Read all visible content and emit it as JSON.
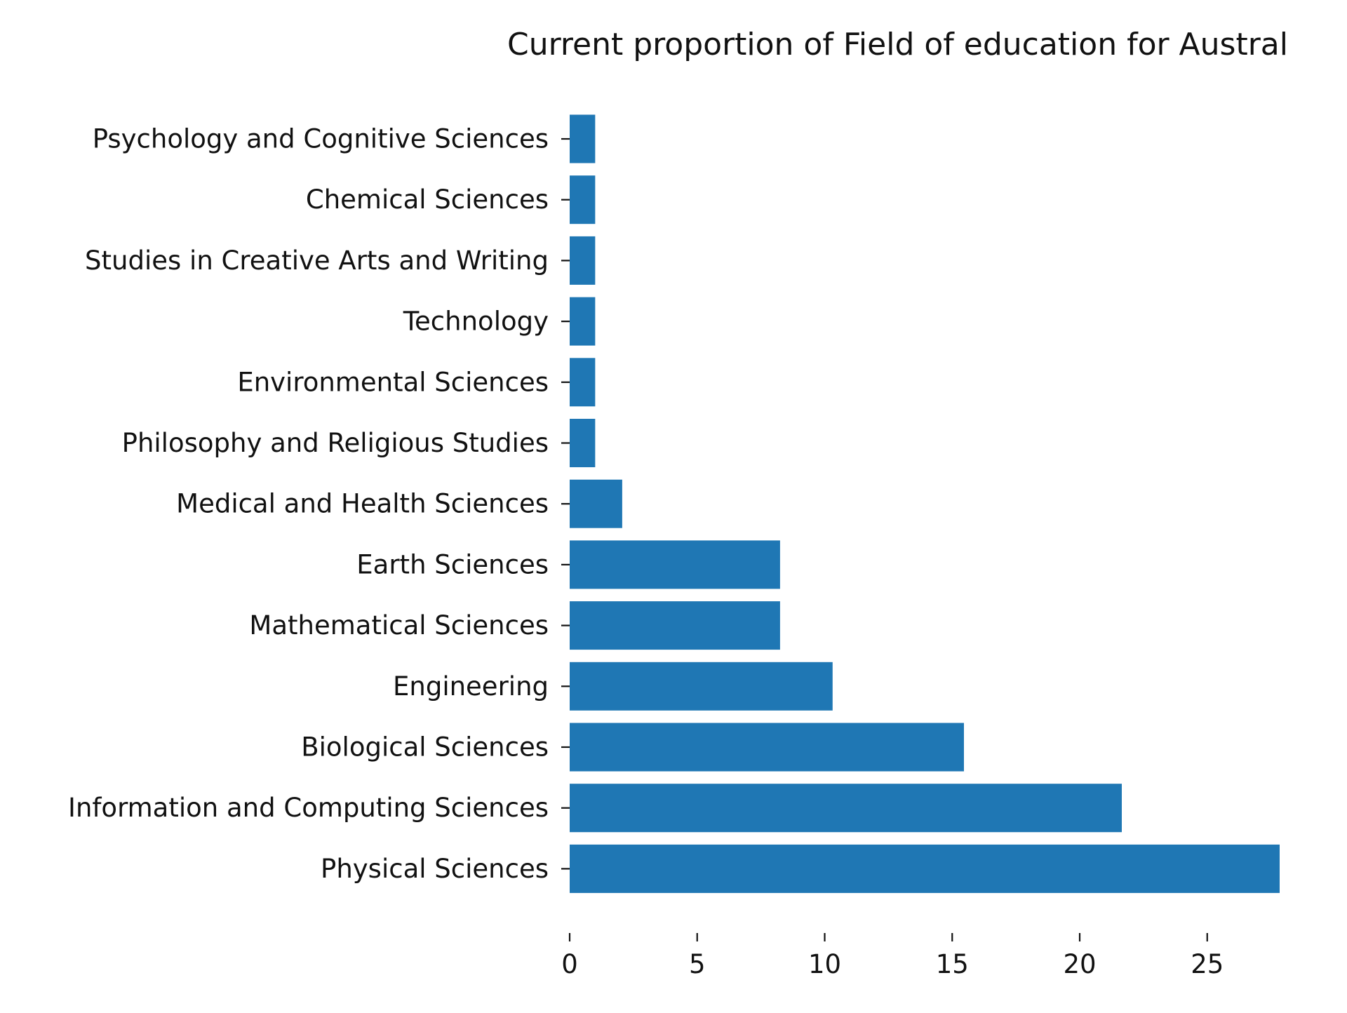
{
  "chart_data": {
    "type": "bar",
    "orientation": "horizontal",
    "title": "Current proportion of Field of education for Austral",
    "xlabel": "",
    "ylabel": "",
    "categories": [
      "Psychology and Cognitive Sciences",
      "Chemical Sciences",
      "Studies in Creative Arts and Writing",
      "Technology",
      "Environmental Sciences",
      "Philosophy and Religious Studies",
      "Medical and Health Sciences",
      "Earth Sciences",
      "Mathematical Sciences",
      "Engineering",
      "Biological Sciences",
      "Information and Computing Sciences",
      "Physical Sciences"
    ],
    "values": [
      1.0,
      1.0,
      1.0,
      1.0,
      1.0,
      1.0,
      2.06,
      8.25,
      8.25,
      10.31,
      15.46,
      21.65,
      27.84
    ],
    "xlim": [
      0,
      27.84
    ],
    "xticks": [
      "0",
      "5",
      "10",
      "15",
      "20",
      "25"
    ],
    "grid": false,
    "legend": "none",
    "colors": {
      "bar": "#1f77b4",
      "text": "#111111",
      "tick": "#111111"
    }
  }
}
